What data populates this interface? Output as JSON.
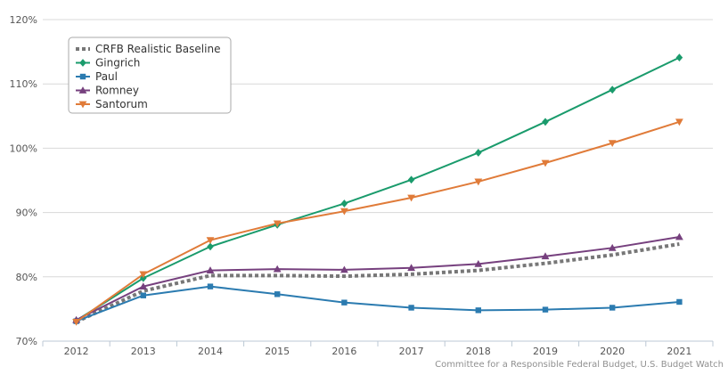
{
  "chart_data": {
    "type": "line",
    "x": [
      "2012",
      "2013",
      "2014",
      "2015",
      "2016",
      "2017",
      "2018",
      "2019",
      "2020",
      "2021"
    ],
    "ylim": [
      70,
      120
    ],
    "yticks": [
      70,
      80,
      90,
      100,
      110,
      120
    ],
    "ytick_labels": [
      "70%",
      "80%",
      "90%",
      "100%",
      "110%",
      "120%"
    ],
    "grid": "horizontal",
    "legend_position": "top-left",
    "series": [
      {
        "name": "CRFB Realistic Baseline",
        "color": "#777777",
        "marker": "none",
        "dashed": true,
        "values": [
          73.0,
          77.8,
          80.2,
          80.2,
          80.1,
          80.4,
          81.0,
          82.1,
          83.4,
          85.1
        ]
      },
      {
        "name": "Gingrich",
        "color": "#1a9b6c",
        "marker": "diamond",
        "values": [
          73.2,
          79.8,
          84.7,
          88.1,
          91.4,
          95.1,
          99.3,
          104.1,
          109.1,
          114.1
        ]
      },
      {
        "name": "Paul",
        "color": "#2b7bb0",
        "marker": "square",
        "values": [
          73.1,
          77.1,
          78.5,
          77.3,
          76.0,
          75.2,
          74.8,
          74.9,
          75.2,
          76.1
        ]
      },
      {
        "name": "Romney",
        "color": "#76407e",
        "marker": "triangle-up",
        "values": [
          73.3,
          78.5,
          81.0,
          81.2,
          81.1,
          81.4,
          82.0,
          83.2,
          84.5,
          86.2
        ]
      },
      {
        "name": "Santorum",
        "color": "#e07b39",
        "marker": "triangle-down",
        "values": [
          73.0,
          80.4,
          85.7,
          88.3,
          90.2,
          92.3,
          94.8,
          97.7,
          100.8,
          104.1
        ]
      }
    ]
  },
  "credit": "Committee for a Responsible Federal Budget, U.S. Budget Watch"
}
